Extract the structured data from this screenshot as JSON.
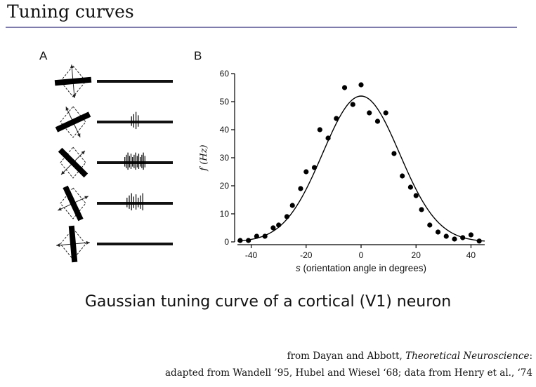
{
  "slide": {
    "title": "Tuning curves",
    "caption": "Gaussian tuning curve of a cortical (V1) neuron",
    "credit_line1_pre": "from Dayan and Abbott, ",
    "credit_line1_book": "Theoretical Neuroscience",
    "credit_line1_post": ":",
    "credit_line2": "adapted from Wandell ’95, Hubel and Wiesel ‘68; data from Henry et al., ‘74"
  },
  "panel_a": {
    "label": "A",
    "stimuli_bar_angle_deg": [
      -5,
      -25,
      45,
      65,
      85
    ],
    "spike_counts": [
      0,
      4,
      14,
      8,
      0
    ]
  },
  "chart_data": {
    "type": "scatter",
    "panel_label": "B",
    "xlabel_italic": "s",
    "xlabel_rest": " (orientation angle in degrees)",
    "ylabel": "f (Hz)",
    "xlim": [
      -45,
      45
    ],
    "ylim": [
      0,
      60
    ],
    "xticks": [
      -40,
      -20,
      0,
      20,
      40
    ],
    "yticks": [
      0,
      10,
      20,
      30,
      40,
      50,
      60
    ],
    "grid": false,
    "points": {
      "x": [
        -44,
        -41,
        -38,
        -35,
        -32,
        -30,
        -27,
        -25,
        -22,
        -20,
        -17,
        -15,
        -12,
        -9,
        -6,
        -3,
        0,
        3,
        6,
        9,
        12,
        15,
        18,
        20,
        22,
        25,
        28,
        31,
        34,
        37,
        40,
        43
      ],
      "y": [
        0.5,
        0.5,
        2,
        2,
        5,
        6,
        9,
        13,
        19,
        25,
        26.5,
        40,
        37,
        44,
        55,
        49,
        56,
        46,
        43,
        46,
        31.5,
        23.5,
        19.5,
        16.5,
        11.5,
        6,
        3.5,
        2,
        1,
        1.5,
        2.5,
        0.3
      ]
    },
    "fit_curve": {
      "type": "gaussian",
      "peak_hz": 52,
      "mean_deg": 0,
      "sigma_deg": 14
    }
  }
}
